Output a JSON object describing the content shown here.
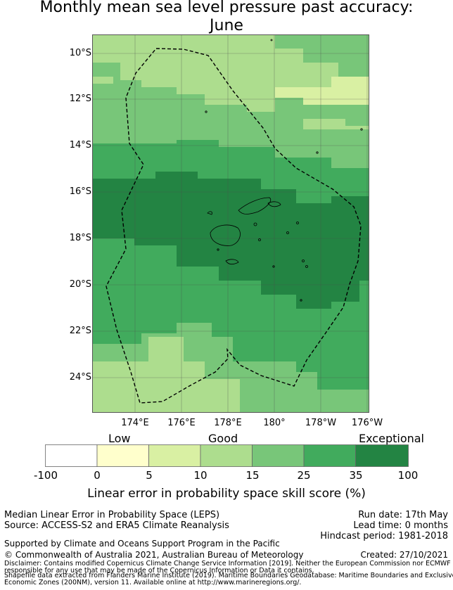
{
  "title_line1": "Monthly mean sea level pressure past accuracy:",
  "title_line2": "June",
  "map": {
    "lat_ticks": [
      "10°S",
      "12°S",
      "14°S",
      "16°S",
      "18°S",
      "20°S",
      "22°S",
      "24°S"
    ],
    "lon_ticks": [
      "174°E",
      "176°E",
      "178°E",
      "180°",
      "178°W",
      "176°W"
    ]
  },
  "colorbar": {
    "category_labels": [
      "Low",
      "Good",
      "Exceptional"
    ],
    "ticks": [
      "-100",
      "0",
      "5",
      "10",
      "15",
      "25",
      "35",
      "100"
    ],
    "colors": [
      "#ffffff",
      "#ffffcc",
      "#d9f0a3",
      "#addd8e",
      "#78c679",
      "#41ab5d",
      "#238443"
    ],
    "xlabel": "Linear error in probability space skill score (%)"
  },
  "footer": {
    "method": "Median Linear Error in Probability Space (LEPS)",
    "source": "Source: ACCESS-S2 and ERA5 Climate Reanalysis",
    "run_date": "Run date: 17th May",
    "lead_time": "Lead time: 0 months",
    "hindcast": "Hindcast period: 1981-2018",
    "support": "Supported by Climate and Oceans Support Program in the Pacific",
    "copyright": "© Commonwealth of Australia 2021, Australian Bureau of Meteorology",
    "created": "Created: 27/10/2021",
    "disclaimer1": "Disclaimer: Contains modified Copernicus Climate Change Service Information [2019]. Neither the European Commission nor ECMWF is",
    "disclaimer2": "responsible for any use that may be made of the Copernicus Information or Data it contains.",
    "shapefile1": "Shapefile data extracted from Flanders Marine Institute (2019). Maritime Boundaries Geodatabase: Maritime Boundaries and Exclusive",
    "shapefile2": "Economic Zones (200NM), version 11. Available online at http://www.marineregions.org/."
  }
}
